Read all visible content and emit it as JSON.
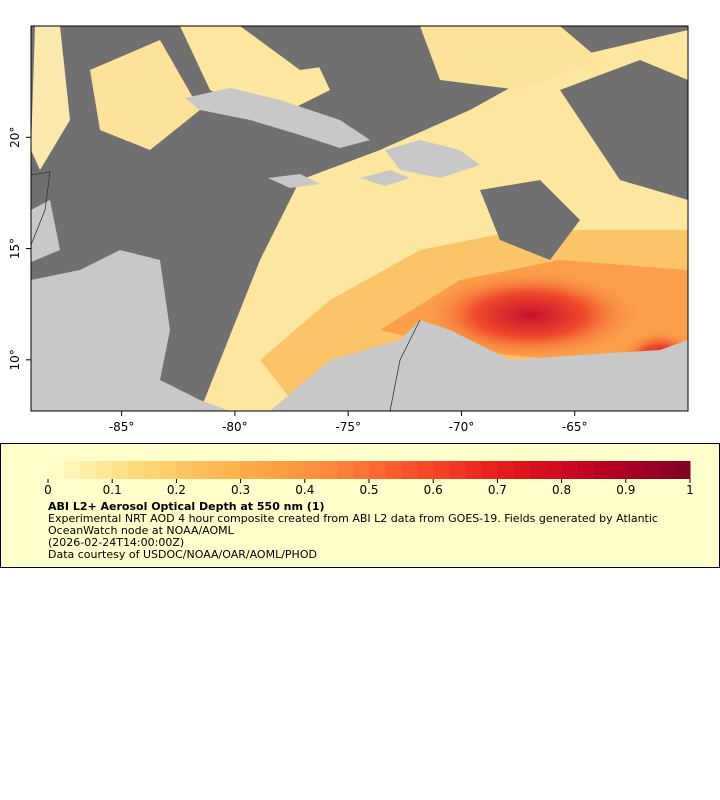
{
  "map": {
    "xlim": [
      -89,
      -60
    ],
    "ylim": [
      7.7,
      25
    ],
    "xticks": [
      {
        "value": -85,
        "label": "-85°"
      },
      {
        "value": -80,
        "label": "-80°"
      },
      {
        "value": -75,
        "label": "-75°"
      },
      {
        "value": -70,
        "label": "-70°"
      },
      {
        "value": -65,
        "label": "-65°"
      }
    ],
    "yticks": [
      {
        "value": 10,
        "label": "10°"
      },
      {
        "value": 15,
        "label": "15°"
      },
      {
        "value": 20,
        "label": "20°"
      }
    ]
  },
  "legend": {
    "colorbar": {
      "lim": [
        0,
        1
      ],
      "ticks": [
        0,
        0.1,
        0.2,
        0.3,
        0.4,
        0.5,
        0.6,
        0.7,
        0.8,
        0.9,
        1
      ],
      "colors": [
        "#ffffcc",
        "#fed976",
        "#feb24c",
        "#fd8d3c",
        "#fc4e2a",
        "#e31a1c",
        "#bd0026",
        "#800026"
      ]
    },
    "title": "ABI L2+ Aerosol Optical Depth at 550 nm (1)",
    "description": "Experimental NRT AOD 4 hour composite created from ABI L2 data from GOES-19. Fields generated by Atlantic OceanWatch node at NOAA/AOML",
    "date": "(2026-02-24T14:00:00Z)",
    "credit": "Data courtesy of USDOC/NOAA/OAR/AOML/PHOD"
  }
}
